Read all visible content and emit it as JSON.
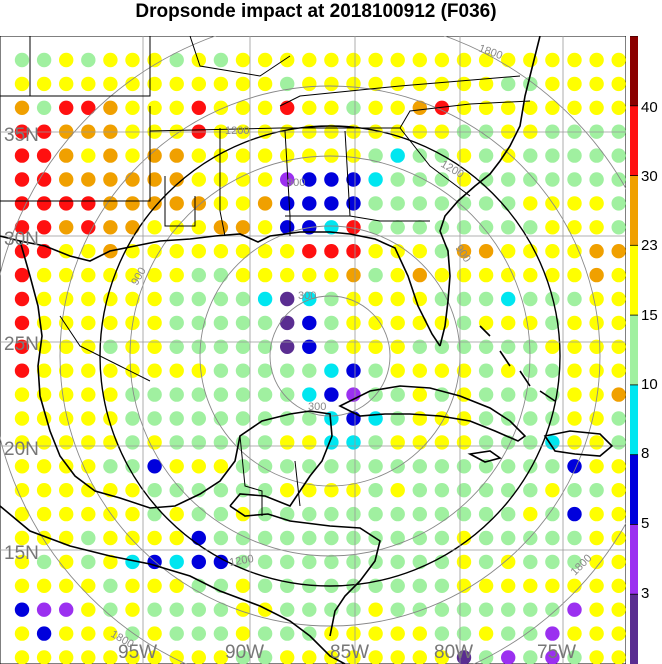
{
  "title": "Dropsonde impact at 2018100912 (F036)",
  "map": {
    "lat_labels": [
      "35N",
      "30N",
      "25N",
      "20N",
      "15N"
    ],
    "lon_labels": [
      "95W",
      "90W",
      "85W",
      "80W",
      "75W"
    ],
    "range_ring_labels": [
      "300",
      "300",
      "900",
      "900",
      "900",
      "1200",
      "1200",
      "1200",
      "1800",
      "1800",
      "1800"
    ]
  },
  "colorbar": {
    "labels": [
      "3",
      "5",
      "8",
      "10",
      "15",
      "23",
      "30",
      "40"
    ],
    "colors": [
      "#5a2d91",
      "#9b30f0",
      "#0000dc",
      "#00e6f0",
      "#a0f0a0",
      "#ffff00",
      "#f0a000",
      "#ff1010",
      "#8b0000"
    ]
  },
  "chart_data": {
    "type": "heatmap",
    "title": "Dropsonde impact at 2018100912 (F036)",
    "legend_levels": [
      3,
      5,
      8,
      10,
      15,
      23,
      30,
      40
    ],
    "grid_rows_note": "rows from north (top) to south, symbols are class codes 1-9 (1=<3 ... 9=>40)",
    "rows": [
      "5565666565666666666666666666",
      "6666666666665666666666556666",
      "7588766686668665667866666666",
      "8877766686666666666655665555",
      "8876767766666666545565655555",
      "8877777766662333455565555555",
      "8888777776673333555555566665",
      "8878776667763348555555556665",
      "8866766666666888666577666677",
      "8666666655666667567666666676",
      "8666666555541456666555455566",
      "8666666555551356666656665666",
      "8666566555551356665555556666",
      "8666666665555543566665655666",
      "6666655555555432556565555667",
      "6666655555555543456665555665",
      "6666656555556644566665554665",
      "6666553666555555555555555366",
      "6666665555556666565555556556",
      "6666665655655555555555565366",
      "6665666635555555555565555566",
      "6565643433555555555565655566",
      "6666566655655555555566666666",
      "3226565555665555655555555266",
      "6366656555655566666556552666",
      "6666666666556666666615252566"
    ]
  }
}
